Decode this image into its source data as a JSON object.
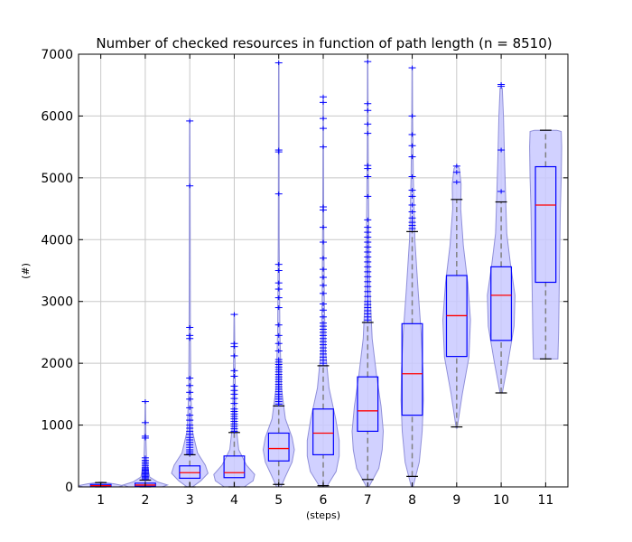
{
  "chart_data": {
    "type": "violin-box",
    "title": "Number of checked resources in function of path length (n = 8510)",
    "xlabel": "(steps)",
    "ylabel": "(#)",
    "categories": [
      "1",
      "2",
      "3",
      "4",
      "5",
      "6",
      "7",
      "8",
      "9",
      "10",
      "11"
    ],
    "ylim": [
      0,
      7000
    ],
    "yticks": [
      0,
      1000,
      2000,
      3000,
      4000,
      5000,
      6000,
      7000
    ],
    "grid": true,
    "colors": {
      "violin_fill": "#c9c9ff",
      "violin_edge": "#8f8fd9",
      "box": "#0000ff",
      "median": "#ff0000",
      "whisker": "#808080",
      "cap": "#000000",
      "flier": "#0000ff",
      "grid": "#c8c8c8"
    },
    "boxes": [
      {
        "step": "1",
        "q1": 5,
        "median": 20,
        "q3": 40,
        "whislo": 0,
        "whishi": 70,
        "fliers": []
      },
      {
        "step": "2",
        "q1": 10,
        "median": 30,
        "q3": 60,
        "whislo": 0,
        "whishi": 110,
        "fliers": [
          130,
          150,
          170,
          190,
          210,
          230,
          250,
          270,
          290,
          310,
          340,
          370,
          400,
          430,
          470,
          790,
          820,
          1040,
          1380
        ]
      },
      {
        "step": "3",
        "q1": 140,
        "median": 230,
        "q3": 340,
        "whislo": 0,
        "whishi": 520,
        "fliers": [
          540,
          570,
          600,
          640,
          680,
          720,
          760,
          800,
          850,
          900,
          950,
          1000,
          1080,
          1160,
          1280,
          1420,
          1530,
          1640,
          1760,
          2400,
          2450,
          2580,
          4870,
          5920
        ]
      },
      {
        "step": "4",
        "q1": 150,
        "median": 230,
        "q3": 500,
        "whislo": 0,
        "whishi": 880,
        "fliers": [
          900,
          940,
          980,
          1020,
          1060,
          1100,
          1140,
          1180,
          1220,
          1260,
          1350,
          1430,
          1500,
          1560,
          1630,
          1790,
          1880,
          2120,
          2270,
          2320,
          2790
        ]
      },
      {
        "step": "5",
        "q1": 420,
        "median": 620,
        "q3": 870,
        "whislo": 40,
        "whishi": 1310,
        "fliers": [
          1340,
          1380,
          1420,
          1460,
          1500,
          1540,
          1580,
          1620,
          1660,
          1700,
          1740,
          1780,
          1820,
          1860,
          1900,
          1940,
          1980,
          2020,
          2060,
          2200,
          2320,
          2450,
          2620,
          2900,
          3060,
          3200,
          3300,
          3500,
          3600,
          4740,
          5420,
          5450,
          6860
        ]
      },
      {
        "step": "6",
        "q1": 520,
        "median": 870,
        "q3": 1260,
        "whislo": 20,
        "whishi": 1960,
        "fliers": [
          2000,
          2050,
          2100,
          2150,
          2200,
          2250,
          2300,
          2350,
          2400,
          2450,
          2500,
          2550,
          2600,
          2650,
          2750,
          2860,
          2960,
          3130,
          3260,
          3390,
          3520,
          3700,
          3960,
          4200,
          4480,
          4530,
          5500,
          5800,
          5960,
          6220,
          6310
        ]
      },
      {
        "step": "7",
        "q1": 900,
        "median": 1230,
        "q3": 1780,
        "whislo": 120,
        "whishi": 2660,
        "fliers": [
          2700,
          2750,
          2800,
          2850,
          2900,
          2950,
          3000,
          3080,
          3160,
          3240,
          3320,
          3400,
          3480,
          3560,
          3640,
          3720,
          3800,
          3880,
          3960,
          4040,
          4120,
          4200,
          4320,
          4700,
          5020,
          5150,
          5200,
          5720,
          5870,
          6090,
          6200,
          6880
        ]
      },
      {
        "step": "8",
        "q1": 1160,
        "median": 1830,
        "q3": 2640,
        "whislo": 170,
        "whishi": 4130,
        "fliers": [
          4180,
          4230,
          4280,
          4350,
          4450,
          4560,
          4700,
          4800,
          5020,
          5340,
          5520,
          5700,
          6000,
          6780
        ]
      },
      {
        "step": "9",
        "q1": 2110,
        "median": 2770,
        "q3": 3420,
        "whislo": 970,
        "whishi": 4650,
        "fliers": [
          4930,
          5090,
          5190
        ]
      },
      {
        "step": "10",
        "q1": 2370,
        "median": 3100,
        "q3": 3560,
        "whislo": 1520,
        "whishi": 4610,
        "fliers": [
          4780,
          5450,
          6480,
          6510
        ]
      },
      {
        "step": "11",
        "q1": 3310,
        "median": 4560,
        "q3": 5180,
        "whislo": 2070,
        "whishi": 5770,
        "fliers": []
      }
    ],
    "violins": [
      {
        "step": "1",
        "profile": [
          [
            -30,
            0
          ],
          [
            0,
            0.8
          ],
          [
            20,
            1.0
          ],
          [
            50,
            0.6
          ],
          [
            80,
            0
          ]
        ]
      },
      {
        "step": "2",
        "profile": [
          [
            -50,
            0
          ],
          [
            0,
            0.75
          ],
          [
            30,
            1.0
          ],
          [
            80,
            0.55
          ],
          [
            160,
            0.2
          ],
          [
            400,
            0.06
          ],
          [
            800,
            0.03
          ],
          [
            1380,
            0.01
          ]
        ]
      },
      {
        "step": "3",
        "profile": [
          [
            0,
            0.12
          ],
          [
            100,
            0.5
          ],
          [
            220,
            0.82
          ],
          [
            350,
            0.7
          ],
          [
            550,
            0.35
          ],
          [
            900,
            0.12
          ],
          [
            1500,
            0.05
          ],
          [
            2500,
            0.03
          ],
          [
            4000,
            0.02
          ],
          [
            5920,
            0.01
          ]
        ]
      },
      {
        "step": "4",
        "profile": [
          [
            0,
            0.45
          ],
          [
            100,
            0.85
          ],
          [
            200,
            0.92
          ],
          [
            350,
            0.55
          ],
          [
            600,
            0.2
          ],
          [
            1000,
            0.08
          ],
          [
            1800,
            0.04
          ],
          [
            2790,
            0.01
          ]
        ]
      },
      {
        "step": "5",
        "profile": [
          [
            0,
            0.1
          ],
          [
            150,
            0.28
          ],
          [
            400,
            0.6
          ],
          [
            600,
            0.7
          ],
          [
            800,
            0.6
          ],
          [
            1100,
            0.3
          ],
          [
            1600,
            0.12
          ],
          [
            2500,
            0.05
          ],
          [
            4000,
            0.02
          ],
          [
            5500,
            0.015
          ],
          [
            6860,
            0.01
          ]
        ]
      },
      {
        "step": "6",
        "profile": [
          [
            0,
            0.15
          ],
          [
            250,
            0.58
          ],
          [
            500,
            0.72
          ],
          [
            750,
            0.72
          ],
          [
            1100,
            0.56
          ],
          [
            1600,
            0.26
          ],
          [
            2200,
            0.1
          ],
          [
            3000,
            0.05
          ],
          [
            4500,
            0.02
          ],
          [
            6310,
            0.01
          ]
        ]
      },
      {
        "step": "7",
        "profile": [
          [
            0,
            0.05
          ],
          [
            300,
            0.5
          ],
          [
            600,
            0.65
          ],
          [
            900,
            0.7
          ],
          [
            1300,
            0.6
          ],
          [
            1800,
            0.4
          ],
          [
            2400,
            0.2
          ],
          [
            3200,
            0.1
          ],
          [
            4200,
            0.05
          ],
          [
            5500,
            0.02
          ],
          [
            6880,
            0.01
          ]
        ]
      },
      {
        "step": "8",
        "profile": [
          [
            0,
            0.04
          ],
          [
            400,
            0.32
          ],
          [
            900,
            0.45
          ],
          [
            1400,
            0.5
          ],
          [
            1900,
            0.48
          ],
          [
            2500,
            0.4
          ],
          [
            3200,
            0.26
          ],
          [
            4000,
            0.12
          ],
          [
            5000,
            0.05
          ],
          [
            6000,
            0.02
          ],
          [
            6780,
            0.01
          ]
        ]
      },
      {
        "step": "9",
        "profile": [
          [
            950,
            0.02
          ],
          [
            1500,
            0.25
          ],
          [
            2100,
            0.55
          ],
          [
            2700,
            0.62
          ],
          [
            3300,
            0.5
          ],
          [
            3900,
            0.3
          ],
          [
            4500,
            0.18
          ],
          [
            4900,
            0.2
          ],
          [
            5150,
            0.12
          ],
          [
            5200,
            0.02
          ]
        ]
      },
      {
        "step": "10",
        "profile": [
          [
            1520,
            0.05
          ],
          [
            2000,
            0.3
          ],
          [
            2600,
            0.58
          ],
          [
            3100,
            0.62
          ],
          [
            3600,
            0.42
          ],
          [
            4100,
            0.25
          ],
          [
            4700,
            0.2
          ],
          [
            5300,
            0.15
          ],
          [
            6000,
            0.1
          ],
          [
            6450,
            0.05
          ]
        ]
      },
      {
        "step": "11",
        "profile": [
          [
            2070,
            0.55
          ],
          [
            2500,
            0.58
          ],
          [
            3500,
            0.62
          ],
          [
            4500,
            0.66
          ],
          [
            5000,
            0.7
          ],
          [
            5500,
            0.72
          ],
          [
            5750,
            0.7
          ],
          [
            5770,
            0.5
          ]
        ]
      }
    ]
  }
}
